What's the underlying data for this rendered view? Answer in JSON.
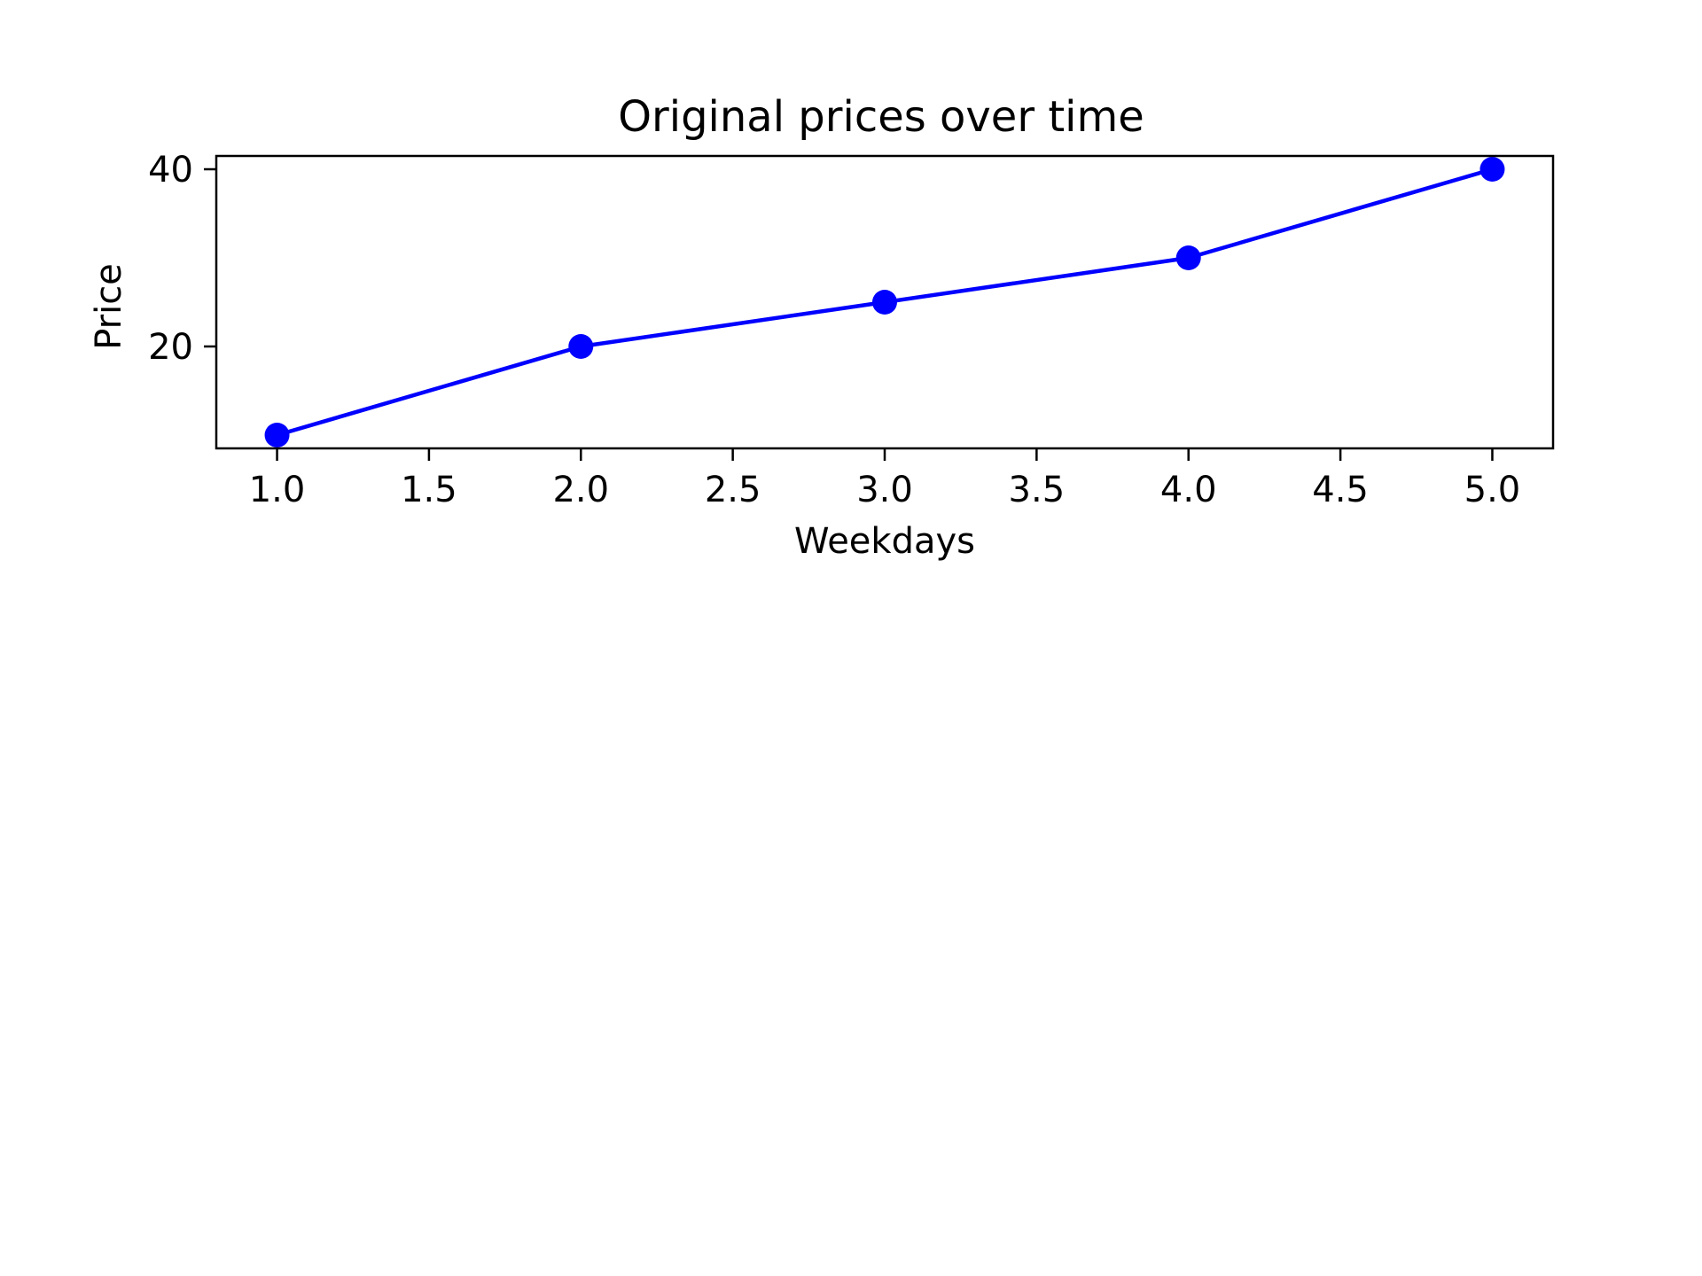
{
  "chart_data": {
    "type": "line",
    "title": "Original prices over time",
    "xlabel": "Weekdays",
    "ylabel": "Price",
    "x": [
      1,
      2,
      3,
      4,
      5
    ],
    "series": [
      {
        "values": [
          10,
          20,
          25,
          30,
          40
        ],
        "color": "#0000ff",
        "marker": "circle"
      }
    ],
    "xlim": [
      0.8,
      5.2
    ],
    "ylim": [
      8.5,
      41.5
    ],
    "xticks": [
      1.0,
      1.5,
      2.0,
      2.5,
      3.0,
      3.5,
      4.0,
      4.5,
      5.0
    ],
    "xtick_labels": [
      "1.0",
      "1.5",
      "2.0",
      "2.5",
      "3.0",
      "3.5",
      "4.0",
      "4.5",
      "5.0"
    ],
    "yticks": [
      20,
      40
    ],
    "ytick_labels": [
      "20",
      "40"
    ],
    "grid": false,
    "legend": false
  }
}
